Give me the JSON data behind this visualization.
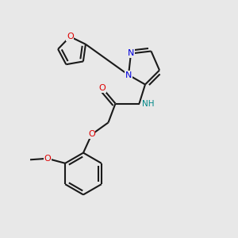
{
  "bg_color": "#e8e8e8",
  "bond_color": "#1a1a1a",
  "N_color": "#0000dd",
  "O_color": "#dd0000",
  "NH_color": "#008888",
  "lw": 1.5,
  "fs": 8.0,
  "dpi": 100,
  "figsize": [
    3.0,
    3.0
  ],
  "xlim": [
    0,
    10
  ],
  "ylim": [
    0,
    10
  ]
}
